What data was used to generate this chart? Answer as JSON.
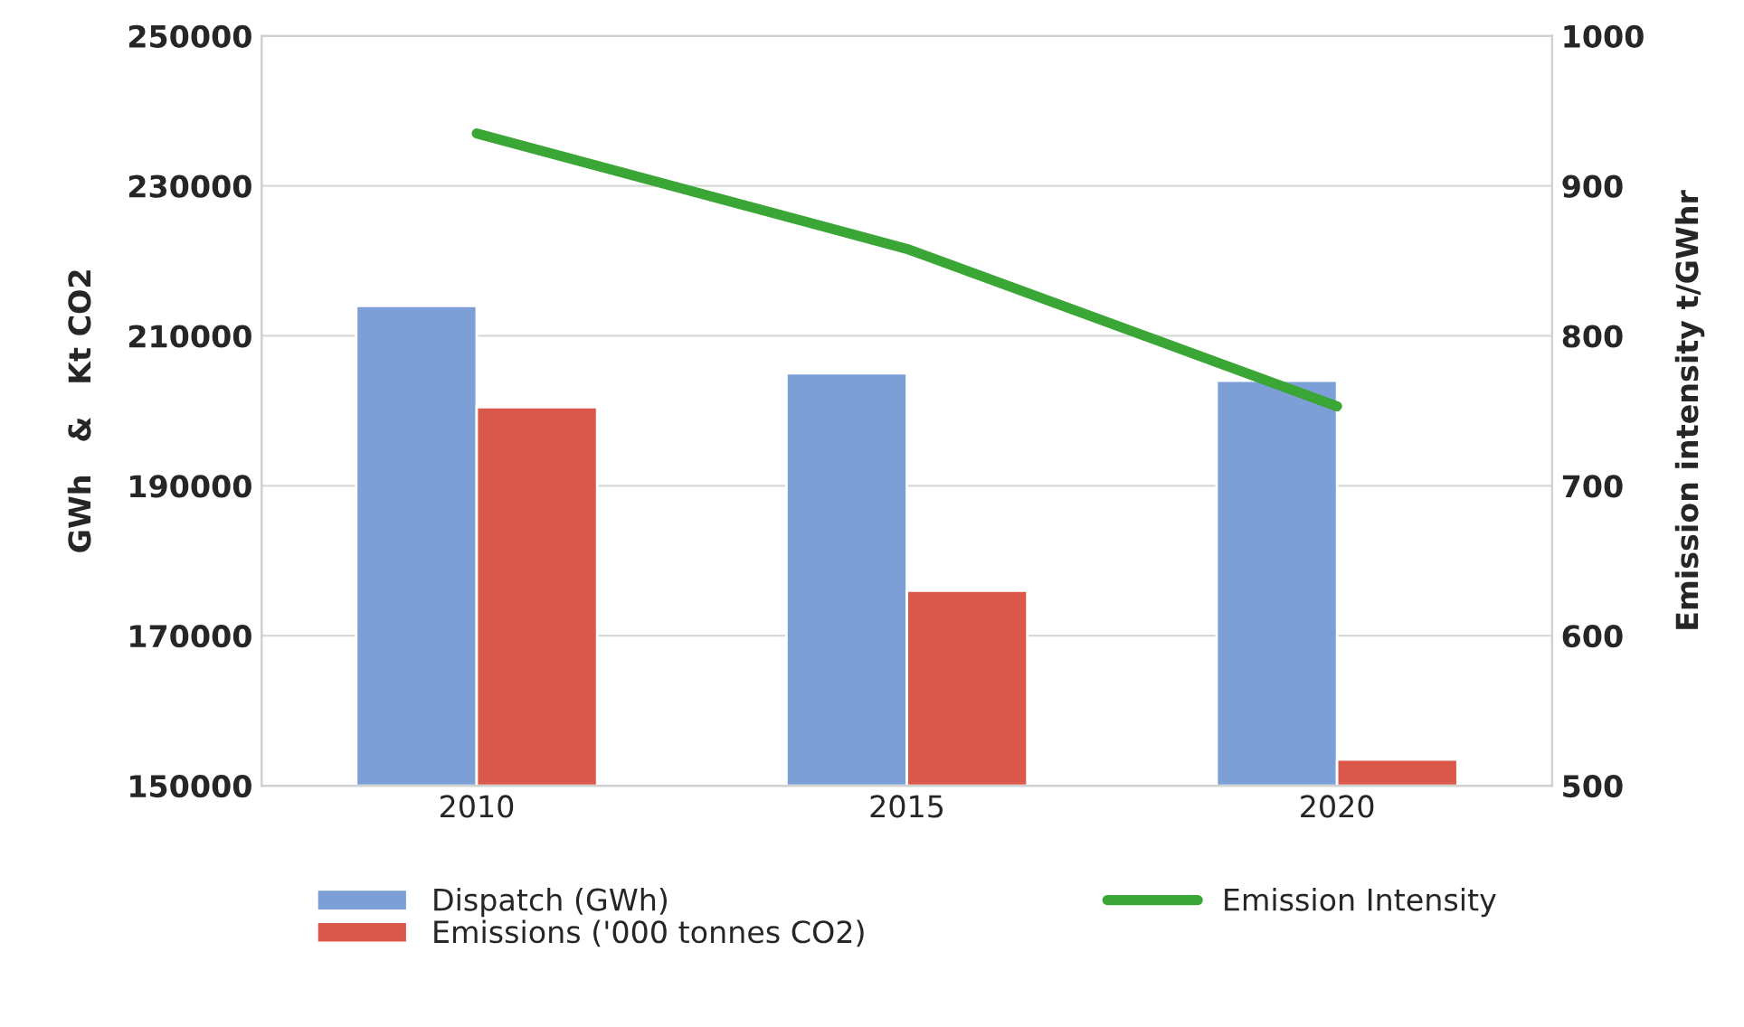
{
  "chart_data": {
    "type": "bar",
    "categories": [
      "2010",
      "2015",
      "2020"
    ],
    "ylabel": "GWh   &   Kt CO2",
    "y2label": "Emission intensity t/GWhr",
    "ylim": [
      150000,
      250000
    ],
    "yticks": [
      150000,
      170000,
      190000,
      210000,
      230000,
      250000
    ],
    "y2lim": [
      500,
      1000
    ],
    "y2ticks": [
      500,
      600,
      700,
      800,
      900,
      1000
    ],
    "grid": "y",
    "legend": "bottom",
    "series": [
      {
        "name": "Dispatch (GWh)",
        "color": "#7b9fd6",
        "values": [
          214000,
          205000,
          204000
        ]
      },
      {
        "name": "Emissions ('000 tonnes CO2)",
        "color": "#d9584a",
        "values": [
          200500,
          176000,
          153500
        ]
      },
      {
        "name": "Emission Intensity",
        "type": "line",
        "axis": "y2",
        "color": "#3aa635",
        "values": [
          935,
          858,
          753
        ]
      }
    ]
  }
}
